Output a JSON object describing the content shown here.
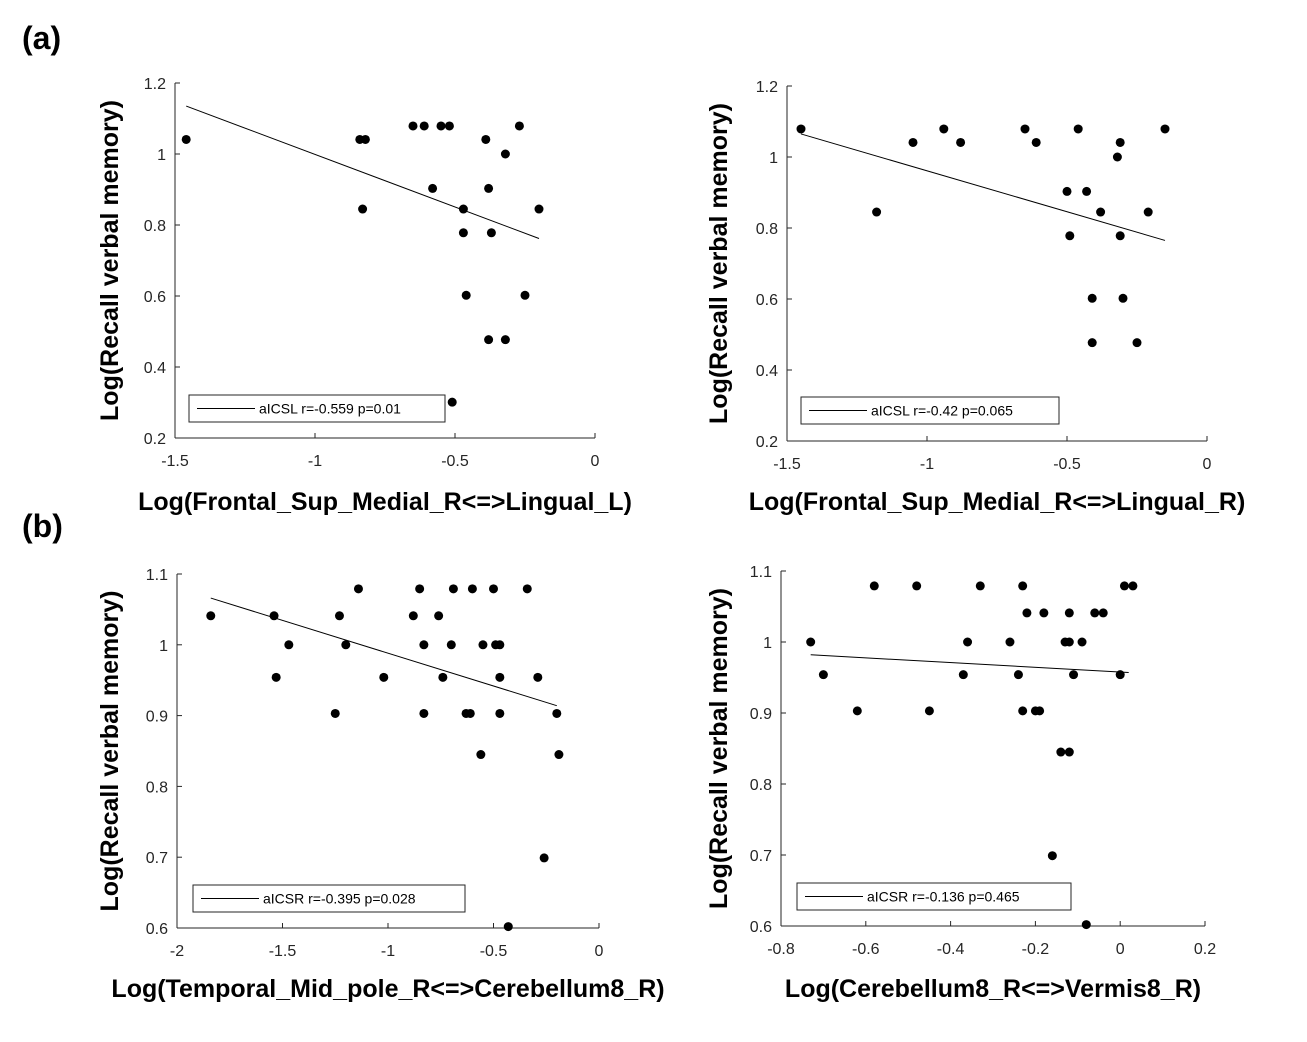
{
  "panel_labels": {
    "a": "(a)",
    "b": "(b)"
  },
  "chart_data": [
    {
      "type": "scatter",
      "panel": "a",
      "xlabel": "Log(Frontal_Sup_Medial_R<=>Lingual_L)",
      "ylabel": "Log(Recall verbal memory)",
      "xlim": [
        -1.5,
        0
      ],
      "ylim": [
        0.2,
        1.2
      ],
      "xticks": [
        -1.5,
        -1,
        -0.5,
        0
      ],
      "xtick_labels": [
        "-1.5",
        "-1",
        "-0.5",
        "0"
      ],
      "yticks": [
        0.2,
        0.4,
        0.6,
        0.8,
        1,
        1.2
      ],
      "ytick_labels": [
        "0.2",
        "0.4",
        "0.6",
        "0.8",
        "1",
        "1.2"
      ],
      "points": [
        [
          -1.46,
          1.041
        ],
        [
          -0.84,
          1.041
        ],
        [
          -0.82,
          1.041
        ],
        [
          -0.83,
          0.845
        ],
        [
          -0.65,
          1.079
        ],
        [
          -0.61,
          1.079
        ],
        [
          -0.58,
          0.903
        ],
        [
          -0.55,
          1.079
        ],
        [
          -0.52,
          1.079
        ],
        [
          -0.51,
          0.301
        ],
        [
          -0.47,
          0.845
        ],
        [
          -0.47,
          0.778
        ],
        [
          -0.46,
          0.602
        ],
        [
          -0.39,
          1.041
        ],
        [
          -0.38,
          0.903
        ],
        [
          -0.38,
          0.477
        ],
        [
          -0.37,
          0.778
        ],
        [
          -0.32,
          1.0
        ],
        [
          -0.32,
          0.477
        ],
        [
          -0.27,
          1.079
        ],
        [
          -0.25,
          0.602
        ],
        [
          -0.2,
          0.845
        ]
      ],
      "fit_line": [
        [
          -1.46,
          1.135
        ],
        [
          -0.2,
          0.762
        ]
      ],
      "legend": "aICSL r=-0.559 p=0.01",
      "legend_position": "bottom-left"
    },
    {
      "type": "scatter",
      "panel": "a",
      "xlabel": "Log(Frontal_Sup_Medial_R<=>Lingual_R)",
      "ylabel": "Log(Recall verbal memory)",
      "xlim": [
        -1.5,
        0
      ],
      "ylim": [
        0.2,
        1.2
      ],
      "xticks": [
        -1.5,
        -1,
        -0.5,
        0
      ],
      "xtick_labels": [
        "-1.5",
        "-1",
        "-0.5",
        "0"
      ],
      "yticks": [
        0.2,
        0.4,
        0.6,
        0.8,
        1,
        1.2
      ],
      "ytick_labels": [
        "0.2",
        "0.4",
        "0.6",
        "0.8",
        "1",
        "1.2"
      ],
      "points": [
        [
          -1.45,
          1.079
        ],
        [
          -1.18,
          0.845
        ],
        [
          -1.05,
          1.041
        ],
        [
          -0.94,
          1.079
        ],
        [
          -0.88,
          1.041
        ],
        [
          -0.65,
          1.079
        ],
        [
          -0.61,
          1.041
        ],
        [
          -0.5,
          0.903
        ],
        [
          -0.49,
          0.778
        ],
        [
          -0.46,
          1.079
        ],
        [
          -0.43,
          0.903
        ],
        [
          -0.41,
          0.602
        ],
        [
          -0.41,
          0.477
        ],
        [
          -0.38,
          0.845
        ],
        [
          -0.32,
          1.0
        ],
        [
          -0.31,
          1.041
        ],
        [
          -0.31,
          0.778
        ],
        [
          -0.3,
          0.602
        ],
        [
          -0.25,
          0.477
        ],
        [
          -0.21,
          0.845
        ],
        [
          -0.15,
          1.079
        ]
      ],
      "fit_line": [
        [
          -1.45,
          1.065
        ],
        [
          -0.15,
          0.765
        ]
      ],
      "legend": "aICSL r=-0.42 p=0.065",
      "legend_position": "bottom-left"
    },
    {
      "type": "scatter",
      "panel": "b",
      "xlabel": "Log(Temporal_Mid_pole_R<=>Cerebellum8_R)",
      "ylabel": "Log(Recall verbal memory)",
      "xlim": [
        -2,
        0
      ],
      "ylim": [
        0.6,
        1.1
      ],
      "xticks": [
        -2,
        -1.5,
        -1,
        -0.5,
        0
      ],
      "xtick_labels": [
        "-2",
        "-1.5",
        "-1",
        "-0.5",
        "0"
      ],
      "yticks": [
        0.6,
        0.7,
        0.8,
        0.9,
        1,
        1.1
      ],
      "ytick_labels": [
        "0.6",
        "0.7",
        "0.8",
        "0.9",
        "1",
        "1.1"
      ],
      "points": [
        [
          -1.84,
          1.041
        ],
        [
          -1.54,
          1.041
        ],
        [
          -1.53,
          0.954
        ],
        [
          -1.47,
          1.0
        ],
        [
          -1.25,
          0.903
        ],
        [
          -1.23,
          1.041
        ],
        [
          -1.2,
          1.0
        ],
        [
          -1.14,
          1.079
        ],
        [
          -1.02,
          0.954
        ],
        [
          -0.88,
          1.041
        ],
        [
          -0.85,
          1.079
        ],
        [
          -0.83,
          1.0
        ],
        [
          -0.83,
          0.903
        ],
        [
          -0.76,
          1.041
        ],
        [
          -0.74,
          0.954
        ],
        [
          -0.7,
          1.0
        ],
        [
          -0.69,
          1.079
        ],
        [
          -0.63,
          0.903
        ],
        [
          -0.61,
          0.903
        ],
        [
          -0.6,
          1.079
        ],
        [
          -0.56,
          0.845
        ],
        [
          -0.55,
          1.0
        ],
        [
          -0.5,
          1.079
        ],
        [
          -0.49,
          1.0
        ],
        [
          -0.47,
          1.0
        ],
        [
          -0.47,
          0.954
        ],
        [
          -0.47,
          0.903
        ],
        [
          -0.43,
          0.602
        ],
        [
          -0.34,
          1.079
        ],
        [
          -0.29,
          0.954
        ],
        [
          -0.26,
          0.699
        ],
        [
          -0.2,
          0.903
        ],
        [
          -0.19,
          0.845
        ]
      ],
      "fit_line": [
        [
          -1.84,
          1.066
        ],
        [
          -0.2,
          0.914
        ]
      ],
      "legend": "aICSR r=-0.395 p=0.028",
      "legend_position": "bottom-left"
    },
    {
      "type": "scatter",
      "panel": "b",
      "xlabel": "Log(Cerebellum8_R<=>Vermis8_R)",
      "ylabel": "Log(Recall verbal memory)",
      "xlim": [
        -0.8,
        0.2
      ],
      "ylim": [
        0.6,
        1.1
      ],
      "xticks": [
        -0.8,
        -0.6,
        -0.4,
        -0.2,
        0,
        0.2
      ],
      "xtick_labels": [
        "-0.8",
        "-0.6",
        "-0.4",
        "-0.2",
        "0",
        "0.2"
      ],
      "yticks": [
        0.6,
        0.7,
        0.8,
        0.9,
        1,
        1.1
      ],
      "ytick_labels": [
        "0.6",
        "0.7",
        "0.8",
        "0.9",
        "1",
        "1.1"
      ],
      "points": [
        [
          -0.73,
          1.0
        ],
        [
          -0.7,
          0.954
        ],
        [
          -0.62,
          0.903
        ],
        [
          -0.58,
          1.079
        ],
        [
          -0.48,
          1.079
        ],
        [
          -0.45,
          0.903
        ],
        [
          -0.37,
          0.954
        ],
        [
          -0.36,
          1.0
        ],
        [
          -0.33,
          1.079
        ],
        [
          -0.26,
          1.0
        ],
        [
          -0.24,
          0.954
        ],
        [
          -0.23,
          0.903
        ],
        [
          -0.23,
          1.079
        ],
        [
          -0.22,
          1.041
        ],
        [
          -0.2,
          0.903
        ],
        [
          -0.19,
          0.903
        ],
        [
          -0.18,
          1.041
        ],
        [
          -0.16,
          0.699
        ],
        [
          -0.14,
          0.845
        ],
        [
          -0.13,
          1.0
        ],
        [
          -0.12,
          0.845
        ],
        [
          -0.12,
          1.041
        ],
        [
          -0.12,
          1.0
        ],
        [
          -0.11,
          0.954
        ],
        [
          -0.09,
          1.0
        ],
        [
          -0.08,
          0.602
        ],
        [
          -0.06,
          1.041
        ],
        [
          -0.04,
          1.041
        ],
        [
          0.0,
          0.954
        ],
        [
          0.01,
          1.079
        ],
        [
          0.03,
          1.079
        ]
      ],
      "fit_line": [
        [
          -0.73,
          0.982
        ],
        [
          0.02,
          0.957
        ]
      ],
      "legend": "aICSR r=-0.136 p=0.465",
      "legend_position": "bottom-left"
    }
  ]
}
